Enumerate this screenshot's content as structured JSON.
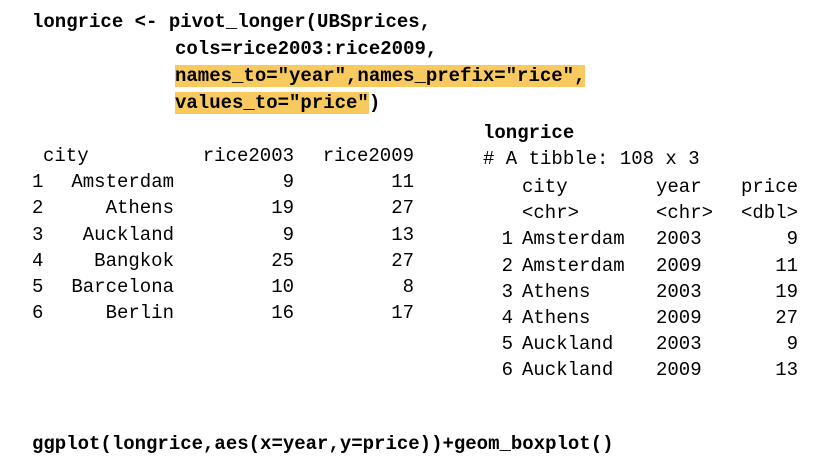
{
  "code_top": {
    "line1": "longrice <- pivot_longer(UBSprices,",
    "line2": "cols=rice2003:rice2009,",
    "line3": "names_to=\"year\",names_prefix=\"rice\",",
    "line4_highlighted": "values_to=\"price\"",
    "line4_rest": ")"
  },
  "code_bottom": "ggplot(longrice,aes(x=year,y=price))+geom_boxplot()",
  "wide_table": {
    "headers": [
      "city",
      "rice2003",
      "rice2009"
    ],
    "rows": [
      {
        "idx": "1",
        "city": "Amsterdam",
        "rice2003": "9",
        "rice2009": "11"
      },
      {
        "idx": "2",
        "city": "Athens",
        "rice2003": "19",
        "rice2009": "27"
      },
      {
        "idx": "3",
        "city": "Auckland",
        "rice2003": "9",
        "rice2009": "13"
      },
      {
        "idx": "4",
        "city": "Bangkok",
        "rice2003": "25",
        "rice2009": "27"
      },
      {
        "idx": "5",
        "city": "Barcelona",
        "rice2003": "10",
        "rice2009": "8"
      },
      {
        "idx": "6",
        "city": "Berlin",
        "rice2003": "16",
        "rice2009": "17"
      }
    ]
  },
  "long_table": {
    "name": "longrice",
    "tibble_info": "# A tibble: 108 x 3",
    "headers": [
      "city",
      "year",
      "price"
    ],
    "types": [
      "<chr>",
      "<chr>",
      "<dbl>"
    ],
    "rows": [
      {
        "idx": "1",
        "city": "Amsterdam",
        "year": "2003",
        "price": "9"
      },
      {
        "idx": "2",
        "city": "Amsterdam",
        "year": "2009",
        "price": "11"
      },
      {
        "idx": "3",
        "city": "Athens",
        "year": "2003",
        "price": "19"
      },
      {
        "idx": "4",
        "city": "Athens",
        "year": "2009",
        "price": "27"
      },
      {
        "idx": "5",
        "city": "Auckland",
        "year": "2003",
        "price": "9"
      },
      {
        "idx": "6",
        "city": "Auckland",
        "year": "2009",
        "price": "13"
      }
    ]
  },
  "colors": {
    "highlight": "#f7c95f",
    "text": "#000000",
    "background": "#ffffff"
  }
}
